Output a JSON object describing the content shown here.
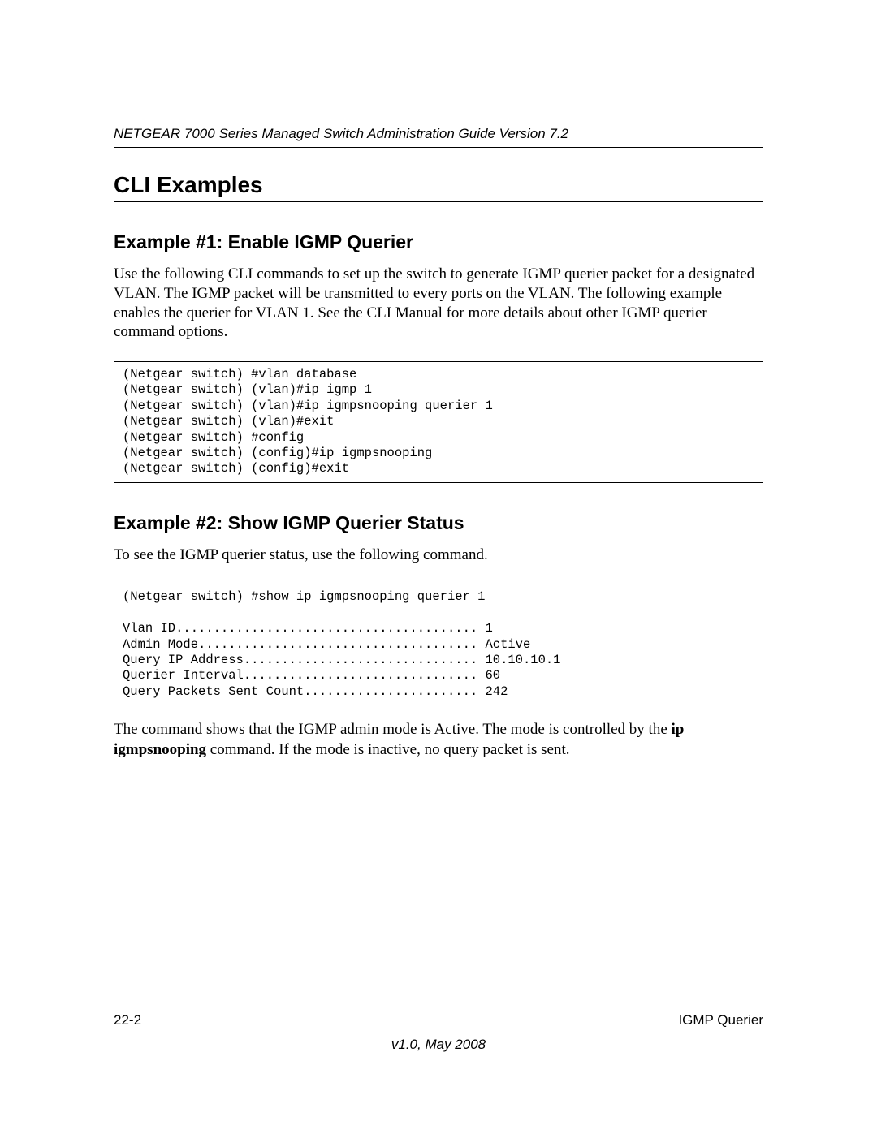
{
  "header": {
    "running_title": "NETGEAR 7000 Series Managed Switch Administration Guide Version 7.2"
  },
  "section": {
    "title": "CLI Examples"
  },
  "example1": {
    "title": "Example #1: Enable IGMP Querier",
    "paragraph": "Use the following CLI commands to set up the switch to generate IGMP querier packet for a designated VLAN. The IGMP packet will be transmitted to every ports on the VLAN. The following example enables the querier for VLAN 1. See the CLI Manual for more details about other IGMP querier command options.",
    "code": "(Netgear switch) #vlan database\n(Netgear switch) (vlan)#ip igmp 1\n(Netgear switch) (vlan)#ip igmpsnooping querier 1\n(Netgear switch) (vlan)#exit\n(Netgear switch) #config\n(Netgear switch) (config)#ip igmpsnooping\n(Netgear switch) (config)#exit"
  },
  "example2": {
    "title": "Example #2: Show IGMP Querier Status",
    "intro": "To see the IGMP querier status, use the following command.",
    "code": "(Netgear switch) #show ip igmpsnooping querier 1\n\nVlan ID........................................ 1\nAdmin Mode..................................... Active\nQuery IP Address............................... 10.10.10.1\nQuerier Interval............................... 60\nQuery Packets Sent Count....................... 242",
    "after_pre": "The command shows that the IGMP admin mode is Active. The mode is controlled by the ",
    "bold_cmd": "ip igmpsnooping",
    "after_post": " command. If the mode is inactive, no query packet is sent."
  },
  "footer": {
    "page_num": "22-2",
    "chapter": "IGMP Querier",
    "version": "v1.0, May 2008"
  }
}
